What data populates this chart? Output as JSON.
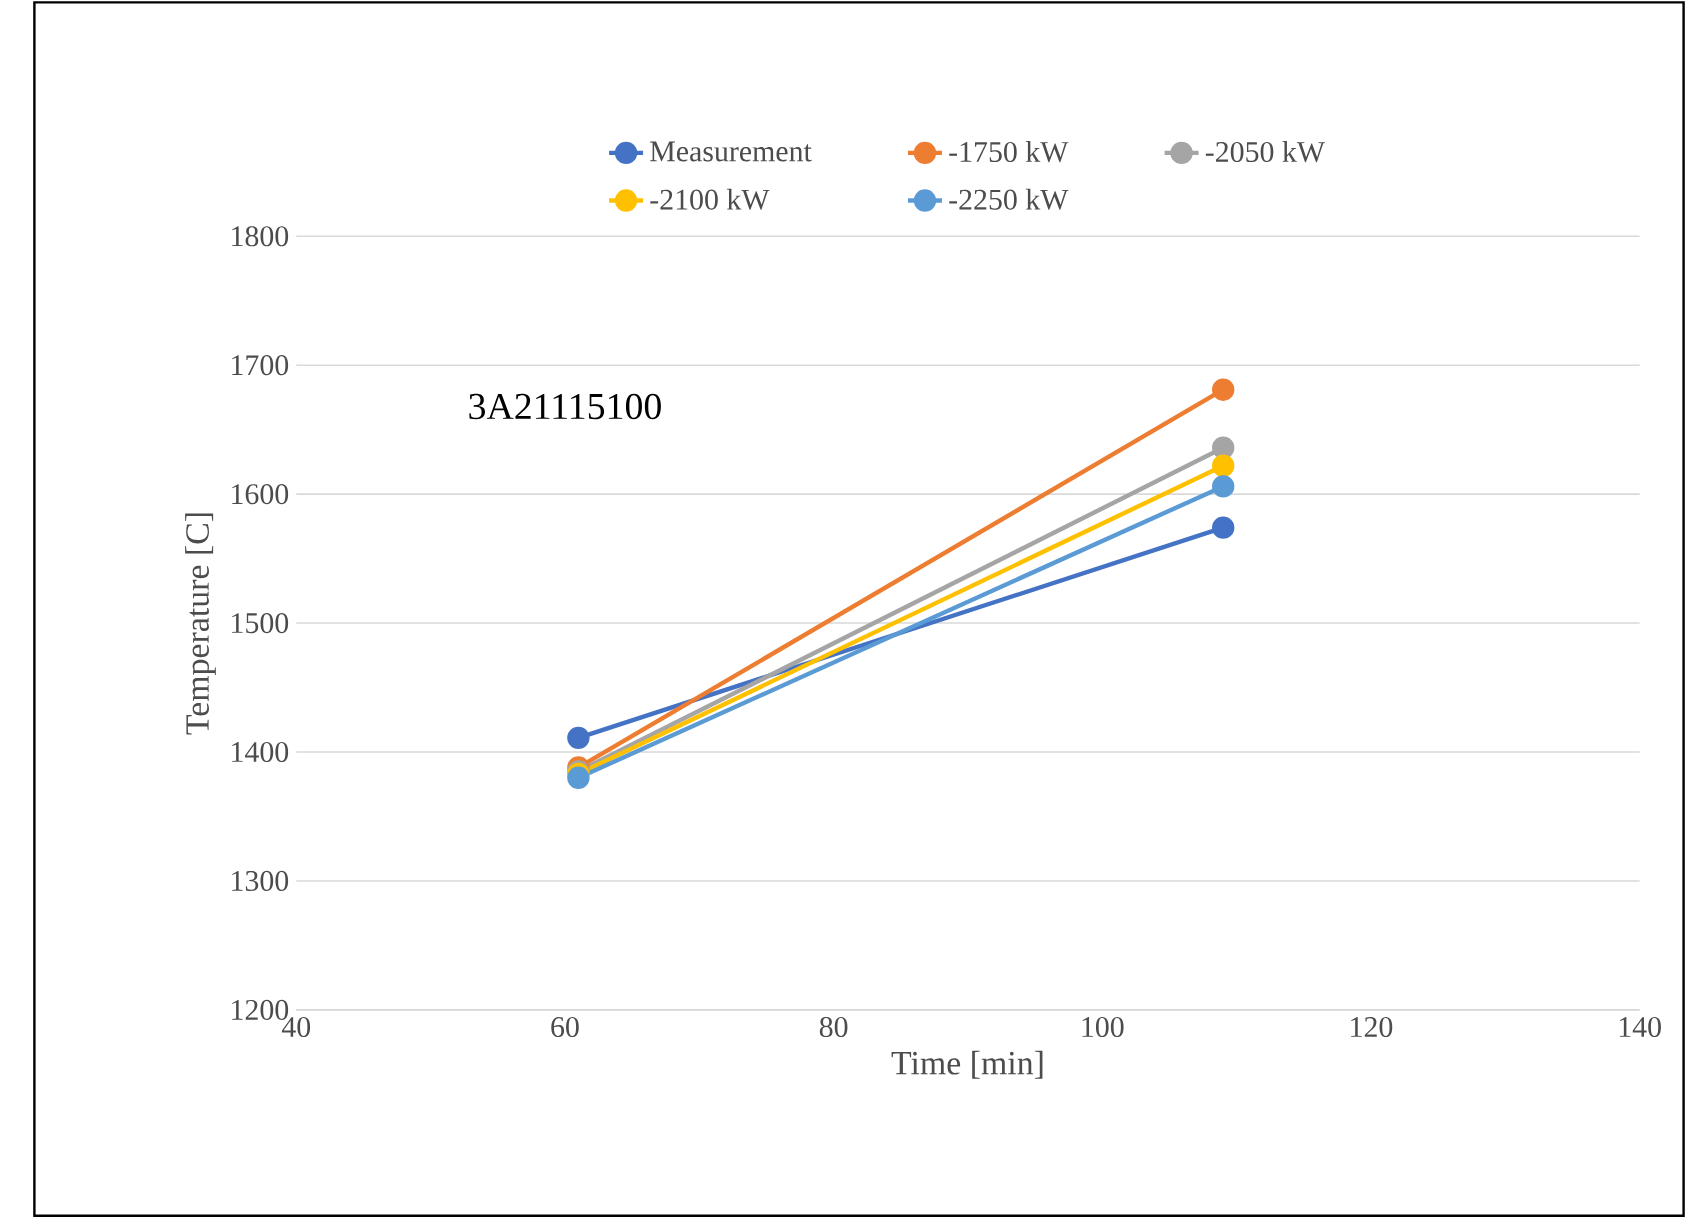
{
  "chart_data": {
    "type": "line",
    "xlabel": "Time [min]",
    "ylabel": "Temperature [C]",
    "annotations": [
      "3A21115100"
    ],
    "x": [
      61,
      109
    ],
    "series": [
      {
        "name": "Measurement",
        "color": "#4472c4",
        "values": [
          1411,
          1574
        ]
      },
      {
        "name": "-1750 kW",
        "color": "#ed7d31",
        "values": [
          1388,
          1681
        ]
      },
      {
        "name": "-2050 kW",
        "color": "#a5a5a5",
        "values": [
          1385,
          1636
        ]
      },
      {
        "name": "-2100 kW",
        "color": "#ffc000",
        "values": [
          1383,
          1622
        ]
      },
      {
        "name": "-2250 kW",
        "color": "#5b9bd5",
        "values": [
          1380,
          1606
        ]
      }
    ],
    "xlim": [
      40,
      140
    ],
    "xticks": [
      40,
      60,
      80,
      100,
      120,
      140
    ],
    "ylim": [
      1200,
      1800
    ],
    "yticks": [
      1200,
      1300,
      1400,
      1500,
      1600,
      1700,
      1800
    ],
    "grid": "y",
    "legend": "top",
    "marker": "circle",
    "line_style": "solid"
  }
}
